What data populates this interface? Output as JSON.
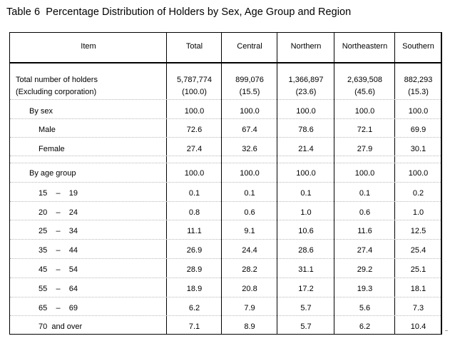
{
  "title": "Table 6  Percentage Distribution of Holders by Sex, Age Group and Region",
  "columns": [
    "Item",
    "Total",
    "Central",
    "Northern",
    "Northeastern",
    "Southern"
  ],
  "rows": [
    {
      "label": "Total number of holders",
      "indent": 0,
      "values": [
        "5,787,774",
        "899,076",
        "1,366,897",
        "2,639,508",
        "882,293"
      ]
    },
    {
      "label": "(Excluding corporation)",
      "indent": 0,
      "values": [
        "(100.0)",
        "(15.5)",
        "(23.6)",
        "(45.6)",
        "(15.3)"
      ]
    },
    {
      "label": "By sex",
      "indent": 1,
      "values": [
        "100.0",
        "100.0",
        "100.0",
        "100.0",
        "100.0"
      ]
    },
    {
      "label": "Male",
      "indent": 2,
      "values": [
        "72.6",
        "67.4",
        "78.6",
        "72.1",
        "69.9"
      ]
    },
    {
      "label": "Female",
      "indent": 2,
      "values": [
        "27.4",
        "32.6",
        "21.4",
        "27.9",
        "30.1"
      ]
    },
    {
      "label": "By age group",
      "indent": 1,
      "values": [
        "100.0",
        "100.0",
        "100.0",
        "100.0",
        "100.0"
      ]
    },
    {
      "label": "15    –    19",
      "indent": 2,
      "values": [
        "0.1",
        "0.1",
        "0.1",
        "0.1",
        "0.2"
      ]
    },
    {
      "label": "20    –    24",
      "indent": 2,
      "values": [
        "0.8",
        "0.6",
        "1.0",
        "0.6",
        "1.0"
      ]
    },
    {
      "label": "25    –    34",
      "indent": 2,
      "values": [
        "11.1",
        "9.1",
        "10.6",
        "11.6",
        "12.5"
      ]
    },
    {
      "label": "35    –    44",
      "indent": 2,
      "values": [
        "26.9",
        "24.4",
        "28.6",
        "27.4",
        "25.4"
      ]
    },
    {
      "label": "45    –    54",
      "indent": 2,
      "values": [
        "28.9",
        "28.2",
        "31.1",
        "29.2",
        "25.1"
      ]
    },
    {
      "label": "55    –    64",
      "indent": 2,
      "values": [
        "18.9",
        "20.8",
        "17.2",
        "19.3",
        "18.1"
      ]
    },
    {
      "label": "65    –    69",
      "indent": 2,
      "values": [
        "6.2",
        "7.9",
        "5.7",
        "5.6",
        "7.3"
      ]
    },
    {
      "label": "70  and over",
      "indent": 2,
      "values": [
        "7.1",
        "8.9",
        "5.7",
        "6.2",
        "10.4"
      ]
    }
  ]
}
